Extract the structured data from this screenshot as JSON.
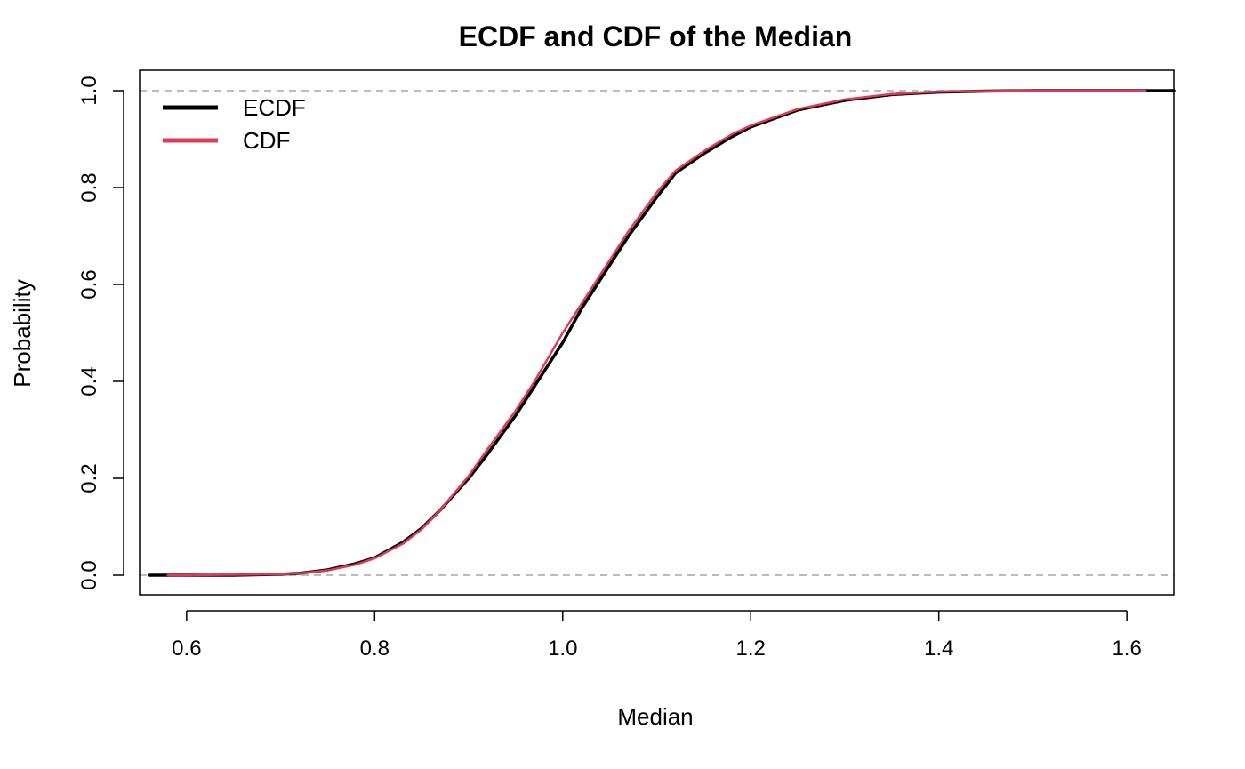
{
  "chart_data": {
    "type": "line",
    "title": "ECDF and CDF of the Median",
    "xlabel": "Median",
    "ylabel": "Probability",
    "xlim": [
      0.55,
      1.65
    ],
    "ylim": [
      0,
      1
    ],
    "xticks": [
      0.6,
      0.8,
      1.0,
      1.2,
      1.4,
      1.6
    ],
    "xtick_labels": [
      "0.6",
      "0.8",
      "1.0",
      "1.2",
      "1.4",
      "1.6"
    ],
    "yticks": [
      0.0,
      0.2,
      0.4,
      0.6,
      0.8,
      1.0
    ],
    "ytick_labels": [
      "0.0",
      "0.2",
      "0.4",
      "0.6",
      "0.8",
      "1.0"
    ],
    "reference_lines_y": [
      0,
      1
    ],
    "grid": false,
    "legend_position": "top-left",
    "series": [
      {
        "name": "ECDF",
        "color": "#000000",
        "x": [
          0.56,
          0.6,
          0.65,
          0.7,
          0.72,
          0.75,
          0.78,
          0.8,
          0.83,
          0.85,
          0.87,
          0.9,
          0.92,
          0.95,
          0.97,
          1.0,
          1.02,
          1.05,
          1.07,
          1.1,
          1.12,
          1.15,
          1.18,
          1.2,
          1.25,
          1.3,
          1.35,
          1.4,
          1.45,
          1.5,
          1.55,
          1.6,
          1.65
        ],
        "y": [
          0.0,
          0.0,
          0.0,
          0.002,
          0.004,
          0.011,
          0.024,
          0.036,
          0.068,
          0.097,
          0.135,
          0.2,
          0.25,
          0.33,
          0.39,
          0.48,
          0.55,
          0.64,
          0.7,
          0.78,
          0.83,
          0.87,
          0.905,
          0.925,
          0.96,
          0.98,
          0.992,
          0.997,
          0.999,
          1.0,
          1.0,
          1.0,
          1.0
        ]
      },
      {
        "name": "CDF",
        "color": "#DF3B57",
        "x": [
          0.58,
          0.6,
          0.65,
          0.7,
          0.72,
          0.75,
          0.78,
          0.8,
          0.83,
          0.85,
          0.87,
          0.9,
          0.92,
          0.95,
          0.97,
          1.0,
          1.02,
          1.05,
          1.07,
          1.1,
          1.12,
          1.15,
          1.18,
          1.2,
          1.25,
          1.3,
          1.35,
          1.4,
          1.45,
          1.5,
          1.55,
          1.62
        ],
        "y": [
          0.0,
          0.0,
          0.001,
          0.002,
          0.004,
          0.01,
          0.022,
          0.035,
          0.065,
          0.095,
          0.135,
          0.205,
          0.26,
          0.34,
          0.4,
          0.5,
          0.56,
          0.65,
          0.71,
          0.79,
          0.835,
          0.875,
          0.91,
          0.928,
          0.962,
          0.982,
          0.993,
          0.998,
          0.999,
          1.0,
          1.0,
          1.0
        ]
      }
    ]
  }
}
